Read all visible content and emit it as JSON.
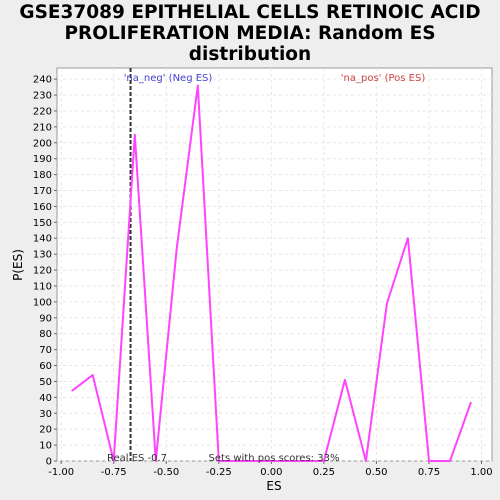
{
  "chart_data": {
    "type": "line",
    "title_lines": [
      "GSE37089 EPITHELIAL CELLS RETINOIC ACID",
      "PROLIFERATION MEDIA: Random ES",
      "distribution"
    ],
    "xlabel": "ES",
    "ylabel": "P(ES)",
    "xlim": [
      -1.02,
      1.05
    ],
    "ylim": [
      0,
      247
    ],
    "xticks": [
      -1.0,
      -0.75,
      -0.5,
      -0.25,
      0.0,
      0.25,
      0.5,
      0.75,
      1.0
    ],
    "xtick_labels": [
      "-1.00",
      "-0.75",
      "-0.50",
      "-0.25",
      "0.00",
      "0.25",
      "0.50",
      "0.75",
      "1.00"
    ],
    "yticks": [
      0,
      10,
      20,
      30,
      40,
      50,
      60,
      70,
      80,
      90,
      100,
      110,
      120,
      130,
      140,
      150,
      160,
      170,
      180,
      190,
      200,
      210,
      220,
      230,
      240
    ],
    "grid": true,
    "series": [
      {
        "color": "#ff44ff",
        "x": [
          -0.95,
          -0.85,
          -0.75,
          -0.65,
          -0.55,
          -0.45,
          -0.35,
          -0.25,
          -0.15,
          -0.05,
          0.05,
          0.15,
          0.25,
          0.35,
          0.45,
          0.55,
          0.65,
          0.75,
          0.85,
          0.95
        ],
        "y": [
          44,
          54,
          0,
          205,
          0,
          134,
          236,
          0,
          0,
          0,
          0,
          0,
          0,
          51,
          0,
          99,
          140,
          0,
          0,
          37
        ]
      }
    ],
    "real_es": -0.67,
    "annotations": {
      "neg_label": "'na_neg' (Neg ES)",
      "pos_label": "'na_pos' (Pos ES)",
      "real_es_label": "Real ES -0.7",
      "pos_scores_label": "Sets with pos scores: 33%"
    },
    "colors": {
      "neg": "#4444cc",
      "pos": "#cc4444",
      "real_es_line": "#333333"
    }
  }
}
